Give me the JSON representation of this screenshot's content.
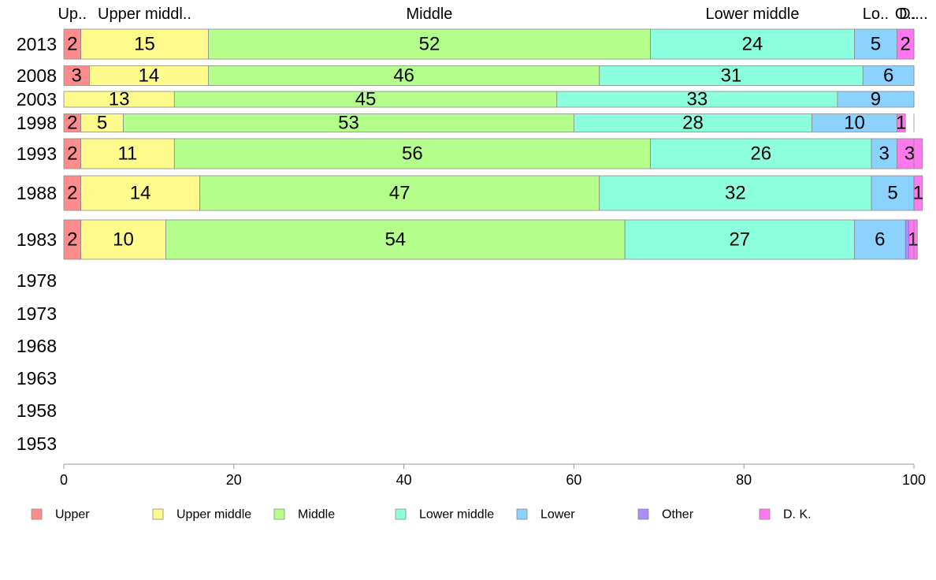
{
  "chart_data": {
    "type": "bar",
    "orientation": "horizontal",
    "stacked": true,
    "xlim": [
      0,
      100
    ],
    "x_ticks": [
      0,
      20,
      40,
      60,
      80,
      100
    ],
    "categories": [
      "2013",
      "2008",
      "2003",
      "1998",
      "1993",
      "1988",
      "1983",
      "1978",
      "1973",
      "1968",
      "1963",
      "1958",
      "1953"
    ],
    "category_headers": [
      "Up..",
      "Upper middl..",
      "Middle",
      "Lower middle",
      "Lo..",
      "O..",
      "D...."
    ],
    "series": [
      {
        "name": "Upper",
        "color": "#FF8C8C",
        "values": [
          2,
          3,
          0,
          2,
          2,
          2,
          2,
          null,
          null,
          null,
          null,
          null,
          null
        ]
      },
      {
        "name": "Upper middle",
        "color": "#FFFA8C",
        "values": [
          15,
          14,
          13,
          5,
          11,
          14,
          10,
          null,
          null,
          null,
          null,
          null,
          null
        ]
      },
      {
        "name": "Middle",
        "color": "#B4FF8C",
        "values": [
          52,
          46,
          45,
          53,
          56,
          47,
          54,
          null,
          null,
          null,
          null,
          null,
          null
        ]
      },
      {
        "name": "Lower middle",
        "color": "#8CFFDC",
        "values": [
          24,
          31,
          33,
          28,
          26,
          32,
          27,
          null,
          null,
          null,
          null,
          null,
          null
        ]
      },
      {
        "name": "Lower",
        "color": "#8CD2FF",
        "values": [
          5,
          6,
          9,
          10,
          3,
          5,
          6,
          null,
          null,
          null,
          null,
          null,
          null
        ]
      },
      {
        "name": "Other",
        "color": "#AA8CFF",
        "values": [
          0,
          0,
          0,
          0,
          0,
          0,
          0.4,
          null,
          null,
          null,
          null,
          null,
          null
        ]
      },
      {
        "name": "D. K.",
        "color": "#FF78F0",
        "values": [
          2,
          0,
          0,
          1,
          3,
          1,
          1,
          null,
          null,
          null,
          null,
          null,
          null
        ]
      }
    ],
    "legend": {
      "placement": "bottom",
      "entries": [
        "Upper",
        "Upper middle",
        "Middle",
        "Lower middle",
        "Lower",
        "Other",
        "D. K."
      ]
    },
    "grid": false
  }
}
